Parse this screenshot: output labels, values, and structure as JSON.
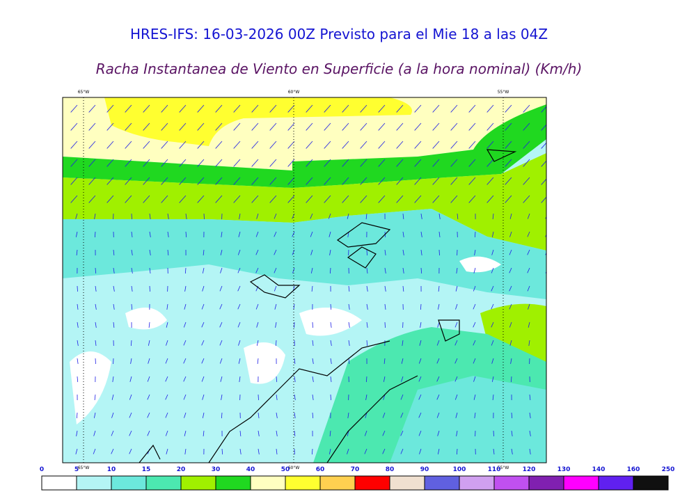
{
  "header": {
    "title": "HRES-IFS: 16-03-2026 00Z Previsto para el Mie 18 a las 04Z",
    "subtitle": "Racha Instantanea de Viento en Superficie (a la hora nominal) (Km/h)"
  },
  "map": {
    "longitude_labels": [
      "65°W",
      "60°W",
      "55°W"
    ]
  },
  "colorbar": {
    "labels": [
      0,
      5,
      10,
      15,
      20,
      30,
      40,
      50,
      60,
      70,
      80,
      90,
      100,
      110,
      120,
      130,
      140,
      160,
      250
    ],
    "colors": [
      "#ffffff",
      "#b4f5f5",
      "#6ce8dc",
      "#4ce8b0",
      "#a0f000",
      "#20d820",
      "#ffffc0",
      "#ffff30",
      "#ffd050",
      "#ff0000",
      "#f0e0d0",
      "#6060e0",
      "#d0a0f0",
      "#c050f0",
      "#8020b0",
      "#ff00ff",
      "#6020f0",
      "#101010"
    ]
  }
}
